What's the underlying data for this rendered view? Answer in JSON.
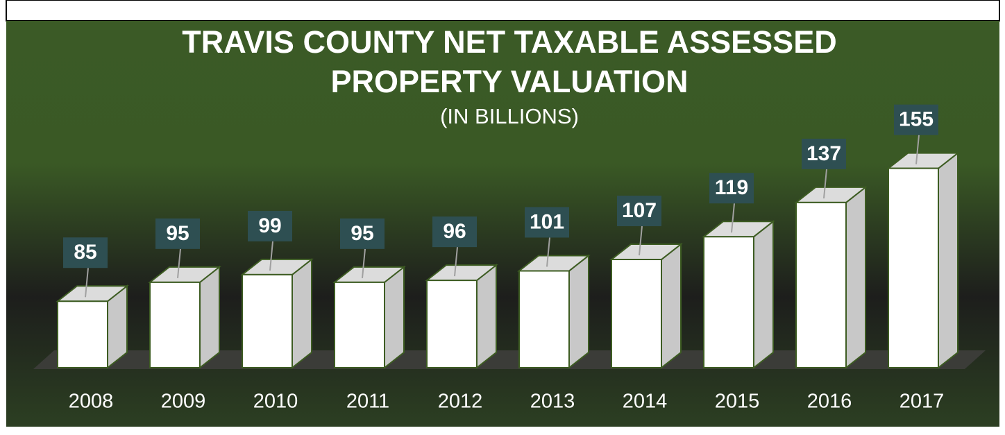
{
  "chart_data": {
    "type": "bar3d",
    "title": "TRAVIS COUNTY NET TAXABLE ASSESSED PROPERTY VALUATION",
    "subtitle": "(IN BILLIONS)",
    "categories": [
      "2008",
      "2009",
      "2010",
      "2011",
      "2012",
      "2013",
      "2014",
      "2015",
      "2016",
      "2017"
    ],
    "values": [
      85,
      95,
      99,
      95,
      96,
      101,
      107,
      119,
      137,
      155
    ],
    "ylim": [
      50,
      160
    ],
    "color": "#ffffff",
    "label_color": "#2e4f52"
  }
}
